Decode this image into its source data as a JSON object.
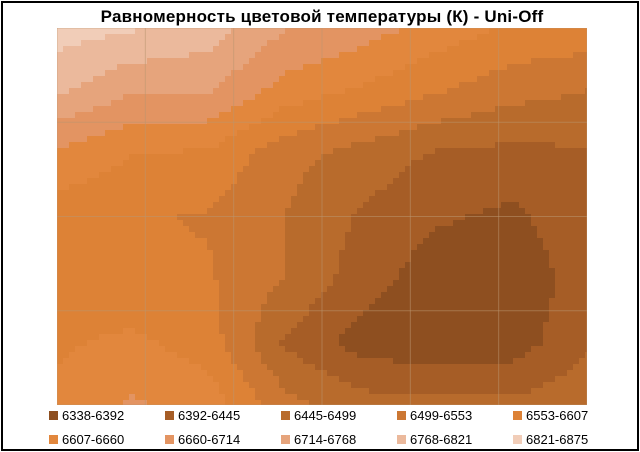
{
  "chart_data": {
    "type": "contour",
    "title": "Равномерность  цветовой температуры (К) - Uni-Off",
    "xlabel": "",
    "ylabel": "",
    "grid": true,
    "legend_position": "bottom",
    "levels": [
      {
        "label": "6338-6392",
        "color": "#8e4f20"
      },
      {
        "label": "6392-6445",
        "color": "#a65d26"
      },
      {
        "label": "6445-6499",
        "color": "#b86b2c"
      },
      {
        "label": "6499-6553",
        "color": "#cc7733"
      },
      {
        "label": "6553-6607",
        "color": "#dd8236"
      },
      {
        "label": "6607-6660",
        "color": "#e2873d"
      },
      {
        "label": "6660-6714",
        "color": "#e39462"
      },
      {
        "label": "6714-6768",
        "color": "#e6a47c"
      },
      {
        "label": "6768-6821",
        "color": "#ebb99c"
      },
      {
        "label": "6821-6875",
        "color": "#f1cdb8"
      }
    ],
    "grid_values": [
      [
        6850,
        6830,
        6800,
        6720,
        6690,
        6640,
        6600,
        6590
      ],
      [
        6780,
        6720,
        6720,
        6640,
        6600,
        6560,
        6520,
        6500
      ],
      [
        6650,
        6610,
        6600,
        6520,
        6480,
        6440,
        6430,
        6440
      ],
      [
        6580,
        6560,
        6550,
        6500,
        6440,
        6400,
        6380,
        6430
      ],
      [
        6580,
        6560,
        6560,
        6500,
        6420,
        6360,
        6350,
        6420
      ],
      [
        6600,
        6620,
        6580,
        6440,
        6370,
        6350,
        6360,
        6440
      ],
      [
        6620,
        6670,
        6640,
        6520,
        6470,
        6460,
        6460,
        6480
      ]
    ]
  }
}
